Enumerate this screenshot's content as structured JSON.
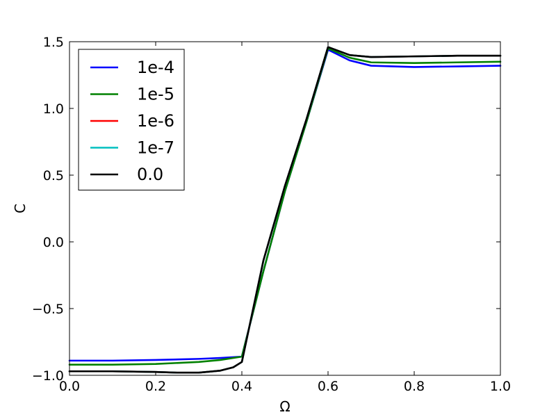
{
  "chart_data": {
    "type": "line",
    "xlabel": "Ω",
    "ylabel": "C",
    "xlim": [
      0.0,
      1.0
    ],
    "ylim": [
      -1.0,
      1.5
    ],
    "xticks": [
      0.0,
      0.2,
      0.4,
      0.6,
      0.8,
      1.0
    ],
    "xtick_labels": [
      "0.0",
      "0.2",
      "0.4",
      "0.6",
      "0.8",
      "1.0"
    ],
    "yticks": [
      -1.0,
      -0.5,
      0.0,
      0.5,
      1.0,
      1.5
    ],
    "ytick_labels": [
      "−1.0",
      "−0.5",
      "0.0",
      "0.5",
      "1.0",
      "1.5"
    ],
    "grid": false,
    "legend": {
      "location": "upper-left",
      "frame": true
    },
    "series": [
      {
        "name": "1e-4",
        "color": "#0000ff",
        "x": [
          0.0,
          0.1,
          0.2,
          0.3,
          0.35,
          0.4,
          0.45,
          0.5,
          0.55,
          0.6,
          0.65,
          0.7,
          0.8,
          0.9,
          1.0
        ],
        "y": [
          -0.89,
          -0.89,
          -0.885,
          -0.877,
          -0.87,
          -0.86,
          -0.22,
          0.38,
          0.9,
          1.44,
          1.36,
          1.32,
          1.31,
          1.315,
          1.32
        ]
      },
      {
        "name": "1e-5",
        "color": "#008000",
        "x": [
          0.0,
          0.1,
          0.2,
          0.3,
          0.35,
          0.4,
          0.45,
          0.5,
          0.55,
          0.6,
          0.65,
          0.7,
          0.8,
          0.9,
          1.0
        ],
        "y": [
          -0.92,
          -0.92,
          -0.915,
          -0.9,
          -0.885,
          -0.86,
          -0.22,
          0.38,
          0.9,
          1.45,
          1.38,
          1.345,
          1.34,
          1.345,
          1.35
        ]
      },
      {
        "name": "1e-6",
        "color": "#ff0000",
        "x": [
          0.0,
          0.1,
          0.2,
          0.25,
          0.3,
          0.35,
          0.38,
          0.4,
          0.45,
          0.5,
          0.55,
          0.6,
          0.65,
          0.7,
          0.8,
          0.9,
          1.0
        ],
        "y": [
          -0.97,
          -0.97,
          -0.975,
          -0.98,
          -0.98,
          -0.965,
          -0.94,
          -0.9,
          -0.14,
          0.42,
          0.92,
          1.46,
          1.4,
          1.385,
          1.39,
          1.395,
          1.395
        ]
      },
      {
        "name": "1e-7",
        "color": "#00bfbf",
        "x": [
          0.0,
          0.1,
          0.2,
          0.25,
          0.3,
          0.35,
          0.38,
          0.4,
          0.45,
          0.5,
          0.55,
          0.6,
          0.65,
          0.7,
          0.8,
          0.9,
          1.0
        ],
        "y": [
          -0.97,
          -0.97,
          -0.975,
          -0.98,
          -0.98,
          -0.965,
          -0.94,
          -0.9,
          -0.14,
          0.42,
          0.92,
          1.46,
          1.4,
          1.385,
          1.39,
          1.395,
          1.395
        ]
      },
      {
        "name": "0.0",
        "color": "#000000",
        "x": [
          0.0,
          0.1,
          0.2,
          0.25,
          0.3,
          0.35,
          0.38,
          0.4,
          0.45,
          0.5,
          0.55,
          0.6,
          0.65,
          0.7,
          0.8,
          0.9,
          1.0
        ],
        "y": [
          -0.97,
          -0.97,
          -0.975,
          -0.98,
          -0.98,
          -0.965,
          -0.94,
          -0.9,
          -0.14,
          0.42,
          0.92,
          1.46,
          1.4,
          1.385,
          1.39,
          1.395,
          1.395
        ]
      }
    ]
  }
}
